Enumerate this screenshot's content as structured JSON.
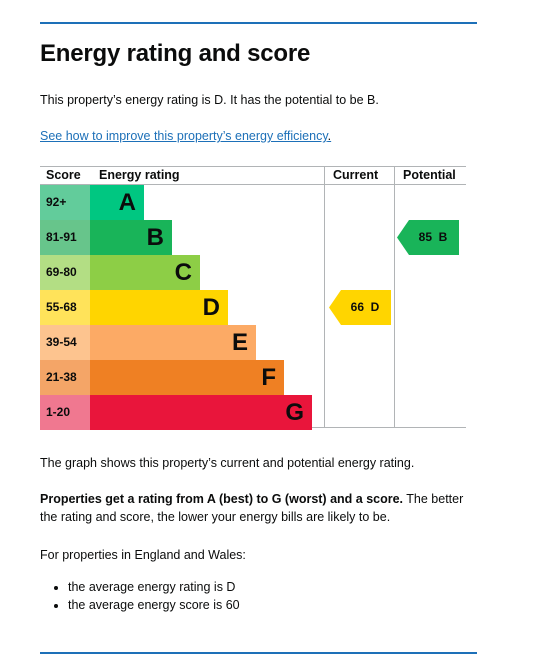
{
  "title": "Energy rating and score",
  "summary": "This property’s energy rating is D. It has the potential to be B.",
  "link": {
    "text": "See how to improve this property’s energy efficiency",
    "suffix": "."
  },
  "chart_data": {
    "type": "bar",
    "headers": {
      "score": "Score",
      "rating": "Energy rating",
      "current": "Current",
      "potential": "Potential"
    },
    "bands": [
      {
        "score": "92+",
        "letter": "A",
        "color": "#00c781",
        "score_bg": "#62cc9b",
        "width": 54
      },
      {
        "score": "81-91",
        "letter": "B",
        "color": "#19b459",
        "score_bg": "#67c58b",
        "width": 82
      },
      {
        "score": "69-80",
        "letter": "C",
        "color": "#8dce46",
        "score_bg": "#b3de84",
        "width": 110
      },
      {
        "score": "55-68",
        "letter": "D",
        "color": "#ffd500",
        "score_bg": "#ffe35a",
        "width": 138
      },
      {
        "score": "39-54",
        "letter": "E",
        "color": "#fcaa65",
        "score_bg": "#fdc48f",
        "width": 166
      },
      {
        "score": "21-38",
        "letter": "F",
        "color": "#ef8023",
        "score_bg": "#f4a567",
        "width": 194
      },
      {
        "score": "1-20",
        "letter": "G",
        "color": "#e9153b",
        "score_bg": "#f07890",
        "width": 222
      }
    ],
    "current": {
      "value": 66,
      "rating": "D",
      "label": "66  D",
      "color": "#ffd500"
    },
    "potential": {
      "value": 85,
      "rating": "B",
      "label": "85  B",
      "color": "#19b459"
    }
  },
  "graph_text": "The graph shows this property’s current and potential energy rating.",
  "explain_bold": "Properties get a rating from A (best) to G (worst) and a score.",
  "explain_rest": " The better the rating and score, the lower your energy bills are likely to be.",
  "region_text": "For properties in England and Wales:",
  "bullets": [
    "the average energy rating is D",
    "the average energy score is 60"
  ]
}
